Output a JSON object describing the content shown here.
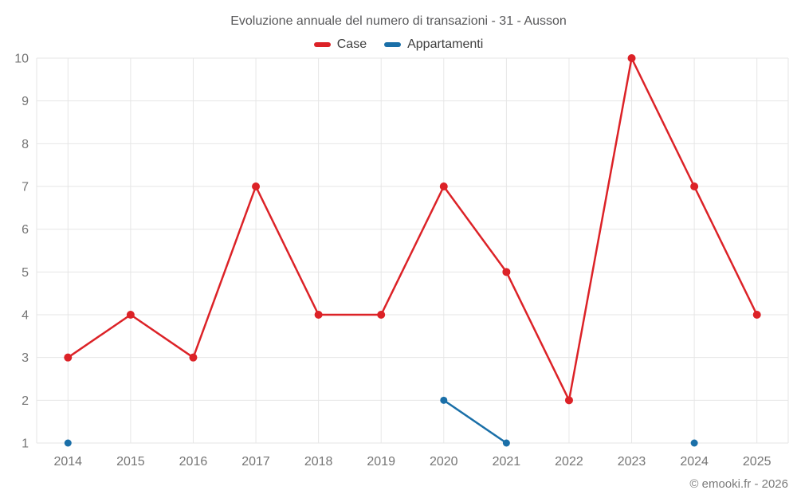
{
  "page": {
    "copyright": "© emooki.fr - 2026"
  },
  "chart_data": {
    "type": "line",
    "title": "Evoluzione annuale del numero di transazioni - 31 - Ausson",
    "categories": [
      "2014",
      "2015",
      "2016",
      "2017",
      "2018",
      "2019",
      "2020",
      "2021",
      "2022",
      "2023",
      "2024",
      "2025"
    ],
    "series": [
      {
        "name": "Case",
        "color": "#dc2227",
        "values": [
          3,
          4,
          3,
          7,
          4,
          4,
          7,
          5,
          2,
          10,
          7,
          4
        ]
      },
      {
        "name": "Appartamenti",
        "color": "#1a6fa8",
        "values": [
          1,
          null,
          null,
          null,
          null,
          null,
          2,
          1,
          null,
          null,
          1,
          null
        ]
      }
    ],
    "xlabel": "",
    "ylabel": "",
    "ylim": [
      1,
      10
    ],
    "yticks": [
      1,
      2,
      3,
      4,
      5,
      6,
      7,
      8,
      9,
      10
    ],
    "grid": true,
    "legend_position": "top"
  }
}
